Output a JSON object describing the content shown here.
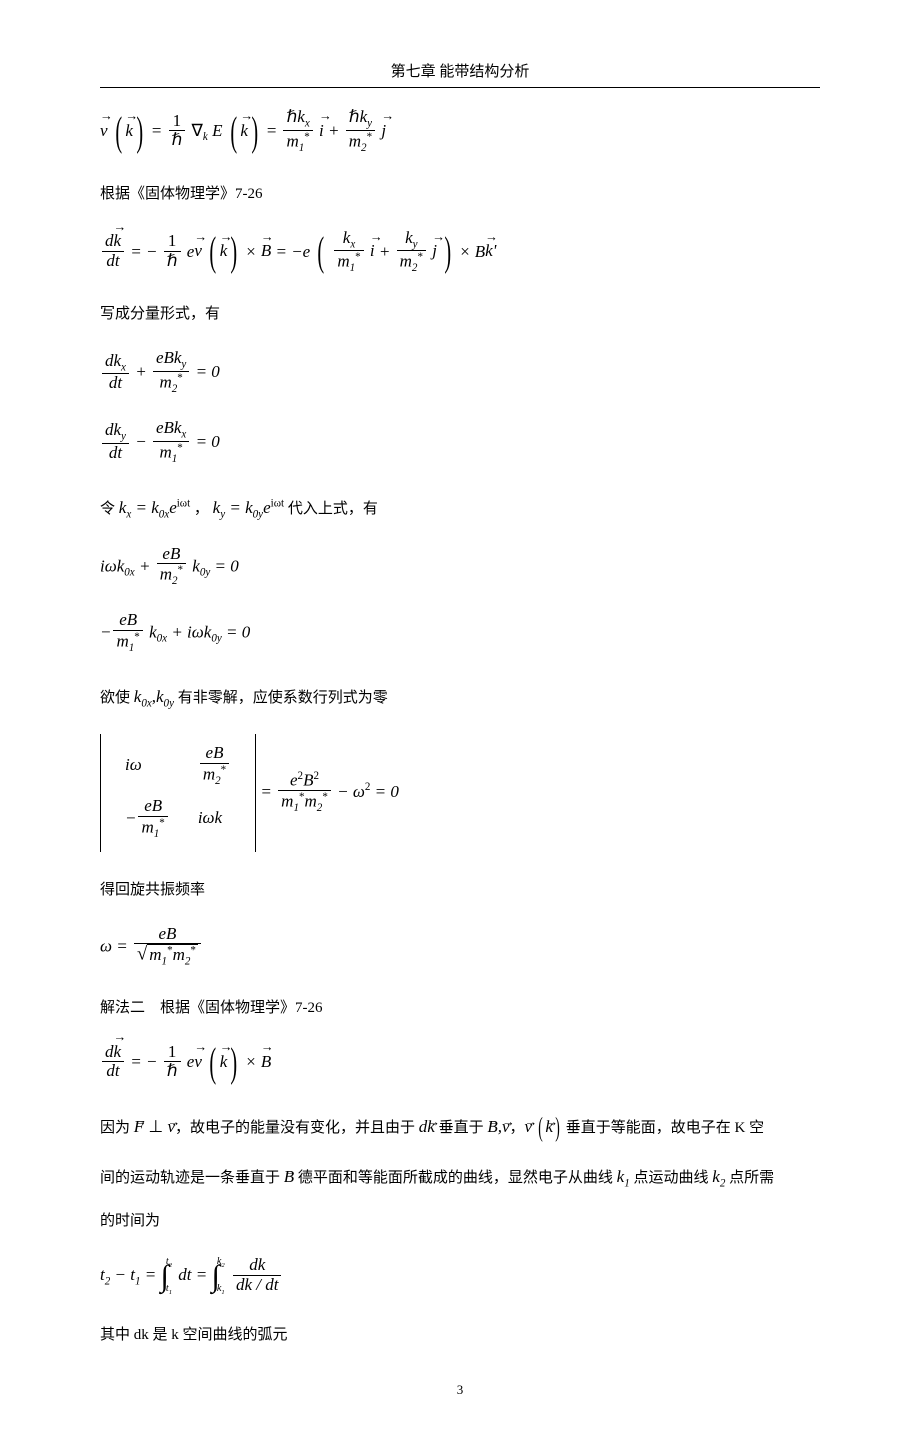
{
  "header": "第七章  能带结构分析",
  "pageNumber": "3",
  "text": {
    "t1": "根据《固体物理学》7-26",
    "t2": "写成分量形式，有",
    "t3_a": "令 ",
    "t3_b": " 代入上式，有",
    "t4_a": "欲使 ",
    "t4_b": " 有非零解，应使系数行列式为零",
    "t5": "得回旋共振频率",
    "t6": "解法二　根据《固体物理学》7-26",
    "t7_a": "因为 ",
    "t7_b": "，故电子的能量没有变化，并且由于 ",
    "t7_c": " 垂直于 ",
    "t7_d": "，",
    "t7_e": " 垂直于等能面，故电子在 K 空",
    "t8_a": "间的运动轨迹是一条垂直于 ",
    "t8_b": " 德平面和等能面所截成的曲线，显然电子从曲线 ",
    "t8_c": " 点运动曲线 ",
    "t8_d": " 点所需",
    "t9": "的时间为",
    "t10": "其中 dk 是 k 空间曲线的弧元"
  },
  "math": {
    "label_v": "v",
    "label_k": "k",
    "label_B": "B",
    "label_F": "F",
    "label_i": "i",
    "label_j": "j",
    "hbar": "ℏ",
    "nabla": "∇",
    "m1s": "m",
    "m1sub": "1",
    "m2sub": "2",
    "star": "*",
    "kx": "k",
    "xsub": "x",
    "ysub": "y",
    "d": "d",
    "dt": "dt",
    "e": "e",
    "kp": "k'",
    "eq0": "= 0",
    "k0x": "k",
    "zero": "0",
    "exp": "e",
    "iwt": "iωt",
    "iw": "iω",
    "eB": "eB",
    "comma_k": ",",
    "eBsq": "e",
    "Bsq": "B",
    "two": "2",
    "omega": "ω",
    "minus": "−",
    "sqrt_body": "m",
    "t2t1": "t",
    "t2s": "2",
    "t1s": "1",
    "int": "∫",
    "dk": "dk",
    "dkdt": "dk / dt",
    "perp": "⊥",
    "k1": "k",
    "k1s": "1",
    "k2s": "2"
  }
}
